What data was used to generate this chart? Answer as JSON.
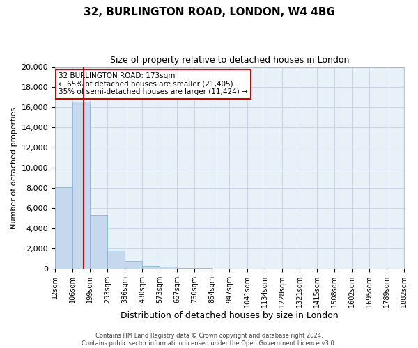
{
  "title": "32, BURLINGTON ROAD, LONDON, W4 4BG",
  "subtitle": "Size of property relative to detached houses in London",
  "xlabel": "Distribution of detached houses by size in London",
  "ylabel": "Number of detached properties",
  "bar_values": [
    8100,
    16500,
    5300,
    1800,
    750,
    300,
    200,
    100,
    50,
    0,
    0,
    0,
    0,
    0,
    0,
    0,
    0,
    0,
    0,
    0
  ],
  "bar_labels": [
    "12sqm",
    "106sqm",
    "199sqm",
    "293sqm",
    "386sqm",
    "480sqm",
    "573sqm",
    "667sqm",
    "760sqm",
    "854sqm",
    "947sqm",
    "1041sqm",
    "1134sqm",
    "1228sqm",
    "1321sqm",
    "1415sqm",
    "1508sqm",
    "1602sqm",
    "1695sqm",
    "1789sqm",
    "1882sqm"
  ],
  "bar_color": "#c5d8ed",
  "bar_edge_color": "#7bafd4",
  "grid_color": "#c8d8e8",
  "bg_color": "#e8f0f8",
  "vline_x": 1.65,
  "vline_color": "#cc0000",
  "ylim": [
    0,
    20000
  ],
  "annotation_title": "32 BURLINGTON ROAD: 173sqm",
  "annotation_line1": "← 65% of detached houses are smaller (21,405)",
  "annotation_line2": "35% of semi-detached houses are larger (11,424) →",
  "annotation_box_color": "#cc0000",
  "footer1": "Contains HM Land Registry data © Crown copyright and database right 2024.",
  "footer2": "Contains public sector information licensed under the Open Government Licence v3.0."
}
